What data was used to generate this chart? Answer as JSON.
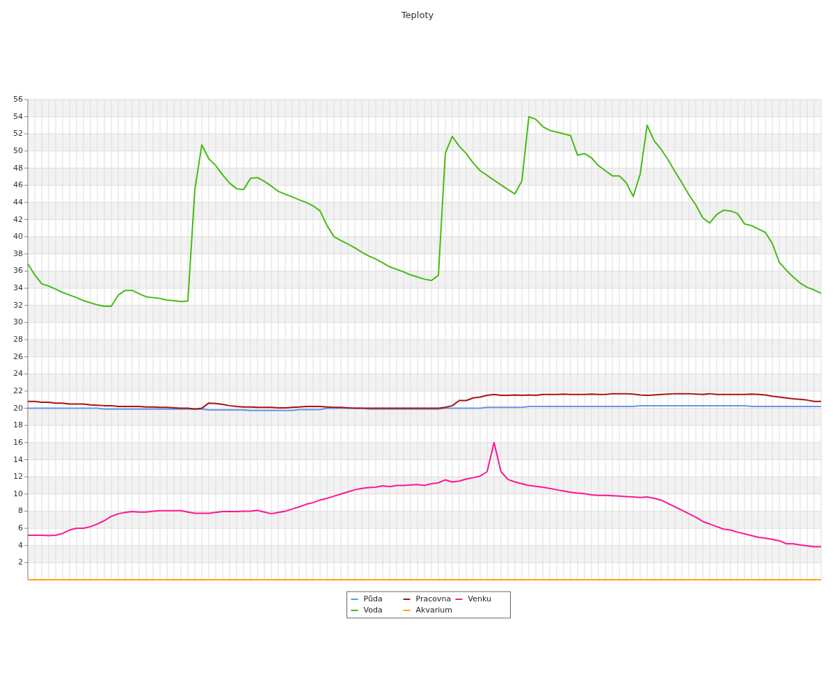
{
  "chart_data": {
    "type": "line",
    "title": "Teploty",
    "categories": [
      null,
      null,
      null,
      null,
      null,
      null,
      null,
      null,
      null,
      null,
      null,
      null,
      null,
      null,
      null,
      null,
      null,
      null,
      null,
      null,
      null,
      null,
      null,
      null,
      null,
      null,
      null,
      null,
      null,
      null,
      null,
      null,
      null,
      null,
      null,
      null,
      null,
      null,
      null,
      null,
      null,
      null,
      null,
      null,
      null,
      null,
      null,
      null,
      null,
      null,
      null,
      null,
      null,
      null,
      null,
      null,
      null,
      null,
      null,
      null,
      null,
      null,
      null,
      null,
      null,
      null,
      null,
      null,
      null,
      null,
      null,
      null,
      null,
      null,
      null,
      null,
      null,
      null,
      null,
      null,
      null,
      null,
      null,
      null,
      null,
      null,
      null,
      null,
      null,
      null,
      null,
      null,
      null,
      null,
      null,
      null,
      null,
      null,
      null,
      null,
      null,
      null,
      null,
      null,
      null,
      null,
      null,
      null,
      null,
      null,
      null,
      null,
      null,
      null,
      null
    ],
    "series": [
      {
        "name": "Půda",
        "color": "#6495ed",
        "values": [
          20.0,
          20.0,
          20.0,
          20.0,
          20.0,
          20.0,
          20.0,
          20.0,
          20.0,
          20.0,
          20.0,
          19.9,
          19.9,
          19.9,
          19.9,
          19.9,
          19.9,
          19.9,
          19.9,
          19.9,
          19.9,
          19.9,
          19.9,
          19.9,
          19.9,
          19.9,
          19.8,
          19.8,
          19.8,
          19.8,
          19.8,
          19.8,
          19.75,
          19.75,
          19.75,
          19.75,
          19.75,
          19.75,
          19.75,
          19.85,
          19.85,
          19.85,
          19.85,
          20.0,
          20.0,
          20.0,
          20.0,
          20.0,
          20.0,
          19.9,
          19.9,
          19.9,
          19.9,
          19.9,
          19.9,
          19.9,
          19.9,
          19.9,
          19.9,
          19.9,
          20.0,
          20.0,
          20.0,
          20.0,
          20.0,
          20.0,
          20.1,
          20.1,
          20.1,
          20.1,
          20.1,
          20.1,
          20.2,
          20.2,
          20.2,
          20.2,
          20.2,
          20.2,
          20.2,
          20.2,
          20.2,
          20.2,
          20.2,
          20.2,
          20.2,
          20.2,
          20.2,
          20.2,
          20.3,
          20.3,
          20.3,
          20.3,
          20.3,
          20.3,
          20.3,
          20.3,
          20.3,
          20.3,
          20.3,
          20.3,
          20.3,
          20.3,
          20.3,
          20.3,
          20.2,
          20.2,
          20.2,
          20.2,
          20.2,
          20.2,
          20.2,
          20.2,
          20.2,
          20.2,
          20.2
        ]
      },
      {
        "name": "Voda",
        "color": "#44bb11",
        "values": [
          36.85,
          35.55,
          34.5,
          34.25,
          33.9,
          33.5,
          33.2,
          32.9,
          32.55,
          32.3,
          32.05,
          31.9,
          31.9,
          33.2,
          33.75,
          33.75,
          33.35,
          33.0,
          32.9,
          32.8,
          32.6,
          32.55,
          32.45,
          32.5,
          45.5,
          50.7,
          49.1,
          48.3,
          47.2,
          46.25,
          45.6,
          45.5,
          46.8,
          46.9,
          46.45,
          45.9,
          45.3,
          44.95,
          44.65,
          44.3,
          44.0,
          43.6,
          43.0,
          41.3,
          40.0,
          39.55,
          39.15,
          38.7,
          38.2,
          37.75,
          37.4,
          36.95,
          36.5,
          36.2,
          35.9,
          35.55,
          35.3,
          35.05,
          34.9,
          35.5,
          49.75,
          51.7,
          50.55,
          49.7,
          48.6,
          47.7,
          47.15,
          46.6,
          46.05,
          45.5,
          45.0,
          46.5,
          54.0,
          53.7,
          52.85,
          52.4,
          52.2,
          52.0,
          51.8,
          49.5,
          49.7,
          49.2,
          48.3,
          47.7,
          47.1,
          47.1,
          46.3,
          44.7,
          47.3,
          53.0,
          51.2,
          50.2,
          49.0,
          47.6,
          46.3,
          44.9,
          43.7,
          42.2,
          41.6,
          42.6,
          43.1,
          43.0,
          42.7,
          41.5,
          41.3,
          40.9,
          40.5,
          39.2,
          37.0,
          36.1,
          35.3,
          34.6,
          34.1,
          33.8,
          33.4
        ]
      },
      {
        "name": "Pracovna",
        "color": "#aa1111",
        "values": [
          20.8,
          20.8,
          20.7,
          20.7,
          20.6,
          20.6,
          20.5,
          20.5,
          20.5,
          20.4,
          20.35,
          20.3,
          20.3,
          20.2,
          20.2,
          20.2,
          20.2,
          20.15,
          20.15,
          20.1,
          20.1,
          20.05,
          20.0,
          20.0,
          19.9,
          20.0,
          20.6,
          20.55,
          20.45,
          20.3,
          20.2,
          20.15,
          20.15,
          20.1,
          20.1,
          20.1,
          20.05,
          20.05,
          20.1,
          20.15,
          20.2,
          20.2,
          20.2,
          20.15,
          20.1,
          20.1,
          20.05,
          20.0,
          20.0,
          20.0,
          20.0,
          20.0,
          20.0,
          20.0,
          20.0,
          20.0,
          20.0,
          20.0,
          20.0,
          20.0,
          20.1,
          20.3,
          20.9,
          20.9,
          21.2,
          21.3,
          21.5,
          21.6,
          21.5,
          21.5,
          21.55,
          21.5,
          21.55,
          21.5,
          21.6,
          21.6,
          21.6,
          21.65,
          21.6,
          21.6,
          21.6,
          21.65,
          21.6,
          21.6,
          21.7,
          21.7,
          21.7,
          21.65,
          21.55,
          21.5,
          21.55,
          21.6,
          21.65,
          21.7,
          21.7,
          21.7,
          21.65,
          21.6,
          21.7,
          21.6,
          21.6,
          21.6,
          21.6,
          21.6,
          21.65,
          21.6,
          21.55,
          21.4,
          21.3,
          21.2,
          21.1,
          21.05,
          20.95,
          20.8,
          20.8
        ]
      },
      {
        "name": "Akvarium",
        "color": "#ffa500",
        "values": [
          0,
          0,
          0,
          0,
          0,
          0,
          0,
          0,
          0,
          0,
          0,
          0,
          0,
          0,
          0,
          0,
          0,
          0,
          0,
          0,
          0,
          0,
          0,
          0,
          0,
          0,
          0,
          0,
          0,
          0,
          0,
          0,
          0,
          0,
          0,
          0,
          0,
          0,
          0,
          0,
          0,
          0,
          0,
          0,
          0,
          0,
          0,
          0,
          0,
          0,
          0,
          0,
          0,
          0,
          0,
          0,
          0,
          0,
          0,
          0,
          0,
          0,
          0,
          0,
          0,
          0,
          0,
          0,
          0,
          0,
          0,
          0,
          0,
          0,
          0,
          0,
          0,
          0,
          0,
          0,
          0,
          0,
          0,
          0,
          0,
          0,
          0,
          0,
          0,
          0,
          0,
          0,
          0,
          0,
          0,
          0,
          0,
          0,
          0,
          0,
          0,
          0,
          0,
          0,
          0,
          0,
          0,
          0,
          0,
          0,
          0,
          0,
          0,
          0,
          0
        ]
      },
      {
        "name": "Venku",
        "color": "#ff1493",
        "values": [
          5.2,
          5.2,
          5.2,
          5.15,
          5.2,
          5.4,
          5.8,
          6.0,
          6.0,
          6.2,
          6.5,
          6.9,
          7.4,
          7.7,
          7.85,
          7.95,
          7.9,
          7.9,
          8.0,
          8.05,
          8.05,
          8.05,
          8.05,
          7.9,
          7.75,
          7.75,
          7.75,
          7.85,
          7.95,
          7.95,
          7.95,
          8.0,
          8.0,
          8.1,
          7.9,
          7.7,
          7.85,
          8.0,
          8.25,
          8.5,
          8.8,
          9.0,
          9.3,
          9.5,
          9.75,
          10.0,
          10.25,
          10.5,
          10.65,
          10.75,
          10.8,
          10.95,
          10.85,
          11.0,
          11.0,
          11.05,
          11.1,
          11.0,
          11.2,
          11.3,
          11.65,
          11.4,
          11.5,
          11.75,
          11.9,
          12.1,
          12.6,
          16.0,
          12.6,
          11.7,
          11.4,
          11.2,
          11.0,
          10.9,
          10.8,
          10.65,
          10.5,
          10.35,
          10.2,
          10.1,
          10.05,
          9.9,
          9.85,
          9.85,
          9.8,
          9.75,
          9.7,
          9.65,
          9.6,
          9.65,
          9.5,
          9.3,
          8.9,
          8.5,
          8.1,
          7.7,
          7.3,
          6.8,
          6.5,
          6.2,
          5.9,
          5.8,
          5.55,
          5.35,
          5.15,
          4.95,
          4.85,
          4.7,
          4.55,
          4.2,
          4.2,
          4.05,
          3.95,
          3.85,
          3.85
        ]
      }
    ],
    "ylim": [
      0,
      56
    ],
    "yticks": [
      2,
      4,
      6,
      8,
      10,
      12,
      14,
      16,
      18,
      20,
      22,
      24,
      26,
      28,
      30,
      32,
      34,
      36,
      38,
      40,
      42,
      44,
      46,
      48,
      50,
      52,
      54,
      56
    ],
    "grid": true,
    "legend": "bottom",
    "tick_labels": "y",
    "marker": "none",
    "line_style": "solid"
  }
}
